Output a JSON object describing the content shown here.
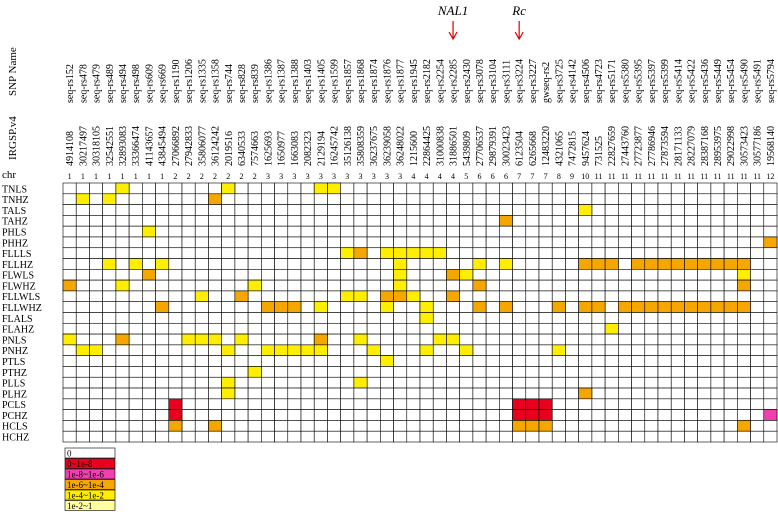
{
  "header": {
    "snp_label": "SNP Name",
    "pos_label": "IRGSP.v4",
    "chr_label": "chr"
  },
  "annotations": [
    {
      "label": "NAL1",
      "col": 29
    },
    {
      "label": "Rc",
      "col": 34
    }
  ],
  "columns": [
    {
      "name": "seq-rs152",
      "pos": "4914108",
      "chr": "1"
    },
    {
      "name": "seq-rs478",
      "pos": "30217497",
      "chr": "1"
    },
    {
      "name": "seq-rs479",
      "pos": "30318105",
      "chr": "1"
    },
    {
      "name": "seq-rs489",
      "pos": "32542551",
      "chr": "1"
    },
    {
      "name": "seq-rs494",
      "pos": "32893083",
      "chr": "1"
    },
    {
      "name": "seq-rs498",
      "pos": "33366474",
      "chr": "1"
    },
    {
      "name": "seq-rs609",
      "pos": "41143657",
      "chr": "1"
    },
    {
      "name": "seq-rs669",
      "pos": "43845494",
      "chr": "1"
    },
    {
      "name": "seq-rs1190",
      "pos": "27066892",
      "chr": "2"
    },
    {
      "name": "seq-rs1206",
      "pos": "27942833",
      "chr": "2"
    },
    {
      "name": "seq-rs1335",
      "pos": "35806077",
      "chr": "2"
    },
    {
      "name": "seq-rs1358",
      "pos": "36124242",
      "chr": "2"
    },
    {
      "name": "seq-rs744",
      "pos": "2019516",
      "chr": "2"
    },
    {
      "name": "seq-rs828",
      "pos": "6340533",
      "chr": "2"
    },
    {
      "name": "seq-rs839",
      "pos": "7574663",
      "chr": "2"
    },
    {
      "name": "seq-rs1386",
      "pos": "1625693",
      "chr": "3"
    },
    {
      "name": "seq-rs1387",
      "pos": "1650977",
      "chr": "3"
    },
    {
      "name": "seq-rs1388",
      "pos": "1663083",
      "chr": "3"
    },
    {
      "name": "seq-rs1403",
      "pos": "2082323",
      "chr": "3"
    },
    {
      "name": "seq-rs1405",
      "pos": "2129194",
      "chr": "3"
    },
    {
      "name": "seq-rs1599",
      "pos": "16245742",
      "chr": "3"
    },
    {
      "name": "seq-rs1857",
      "pos": "35126138",
      "chr": "3"
    },
    {
      "name": "seq-rs1868",
      "pos": "35808359",
      "chr": "3"
    },
    {
      "name": "seq-rs1874",
      "pos": "36237675",
      "chr": "3"
    },
    {
      "name": "seq-rs1876",
      "pos": "36239058",
      "chr": "3"
    },
    {
      "name": "seq-rs1877",
      "pos": "36248022",
      "chr": "3"
    },
    {
      "name": "seq-rs1945",
      "pos": "1215600",
      "chr": "4"
    },
    {
      "name": "seq-rs2182",
      "pos": "22864425",
      "chr": "4"
    },
    {
      "name": "seq-rs2254",
      "pos": "31000838",
      "chr": "4"
    },
    {
      "name": "seq-rs2285",
      "pos": "31886501",
      "chr": "4"
    },
    {
      "name": "seq-rs2430",
      "pos": "5439809",
      "chr": "5"
    },
    {
      "name": "seq-rs3078",
      "pos": "27706537",
      "chr": "6"
    },
    {
      "name": "seq-rs3104",
      "pos": "29879391",
      "chr": "6"
    },
    {
      "name": "seq-rs3111",
      "pos": "30023423",
      "chr": "6"
    },
    {
      "name": "seq-rs3224",
      "pos": "6123504",
      "chr": "7"
    },
    {
      "name": "seq-rs3227",
      "pos": "6265668",
      "chr": "7"
    },
    {
      "name": "gwseq-rs2",
      "pos": "12483220",
      "chr": "7"
    },
    {
      "name": "seq-rs3725",
      "pos": "4321065",
      "chr": "8"
    },
    {
      "name": "seq-rs4142",
      "pos": "7472815",
      "chr": "9"
    },
    {
      "name": "seq-rs4506",
      "pos": "9457624",
      "chr": "10"
    },
    {
      "name": "seq-rs4723",
      "pos": "731525",
      "chr": "11"
    },
    {
      "name": "seq-rs5171",
      "pos": "22827659",
      "chr": "11"
    },
    {
      "name": "seq-rs5380",
      "pos": "27443760",
      "chr": "11"
    },
    {
      "name": "seq-rs5395",
      "pos": "27723877",
      "chr": "11"
    },
    {
      "name": "seq-rs5397",
      "pos": "27786946",
      "chr": "11"
    },
    {
      "name": "seq-rs5399",
      "pos": "27873594",
      "chr": "11"
    },
    {
      "name": "seq-rs5414",
      "pos": "28171133",
      "chr": "11"
    },
    {
      "name": "seq-rs5422",
      "pos": "28227079",
      "chr": "11"
    },
    {
      "name": "seq-rs5436",
      "pos": "28387168",
      "chr": "11"
    },
    {
      "name": "seq-rs5449",
      "pos": "28953975",
      "chr": "11"
    },
    {
      "name": "seq-rs5454",
      "pos": "29022998",
      "chr": "11"
    },
    {
      "name": "seq-rs5490",
      "pos": "30573423",
      "chr": "11"
    },
    {
      "name": "seq-rs5491",
      "pos": "30577186",
      "chr": "11"
    },
    {
      "name": "seq-rs5794",
      "pos": "19568140",
      "chr": "12"
    }
  ],
  "rows": [
    {
      "label": "TNLS",
      "cells": [
        [
          4,
          4
        ],
        [
          12,
          4
        ],
        [
          19,
          4
        ],
        [
          20,
          4
        ]
      ]
    },
    {
      "label": "TNHZ",
      "cells": [
        [
          1,
          4
        ],
        [
          3,
          4
        ],
        [
          11,
          3
        ]
      ]
    },
    {
      "label": "TALS",
      "cells": [
        [
          39,
          4
        ]
      ]
    },
    {
      "label": "TAHZ",
      "cells": [
        [
          33,
          3
        ]
      ]
    },
    {
      "label": "PHLS",
      "cells": [
        [
          6,
          4
        ]
      ]
    },
    {
      "label": "PHHZ",
      "cells": [
        [
          53,
          3
        ]
      ]
    },
    {
      "label": "FLLLS",
      "cells": [
        [
          21,
          4
        ],
        [
          22,
          3
        ],
        [
          24,
          4
        ],
        [
          25,
          4
        ],
        [
          26,
          4
        ],
        [
          27,
          4
        ],
        [
          28,
          4
        ]
      ]
    },
    {
      "label": "FLLHZ",
      "cells": [
        [
          3,
          4
        ],
        [
          5,
          4
        ],
        [
          7,
          4
        ],
        [
          25,
          4
        ],
        [
          31,
          4
        ],
        [
          33,
          4
        ],
        [
          39,
          3
        ],
        [
          40,
          3
        ],
        [
          41,
          3
        ],
        [
          43,
          3
        ],
        [
          44,
          3
        ],
        [
          45,
          3
        ],
        [
          46,
          3
        ],
        [
          47,
          3
        ],
        [
          48,
          3
        ],
        [
          49,
          3
        ],
        [
          50,
          3
        ],
        [
          51,
          3
        ]
      ]
    },
    {
      "label": "FLWLS",
      "cells": [
        [
          6,
          3
        ],
        [
          25,
          4
        ],
        [
          29,
          3
        ],
        [
          30,
          4
        ],
        [
          51,
          4
        ]
      ]
    },
    {
      "label": "FLWHZ",
      "cells": [
        [
          0,
          3
        ],
        [
          4,
          4
        ],
        [
          14,
          4
        ],
        [
          25,
          4
        ],
        [
          31,
          3
        ],
        [
          51,
          3
        ]
      ]
    },
    {
      "label": "FLLWLS",
      "cells": [
        [
          10,
          4
        ],
        [
          13,
          3
        ],
        [
          21,
          4
        ],
        [
          22,
          4
        ],
        [
          24,
          3
        ],
        [
          25,
          3
        ],
        [
          26,
          4
        ],
        [
          29,
          3
        ]
      ]
    },
    {
      "label": "FLLWHZ",
      "cells": [
        [
          7,
          3
        ],
        [
          15,
          3
        ],
        [
          16,
          3
        ],
        [
          17,
          3
        ],
        [
          19,
          4
        ],
        [
          24,
          4
        ],
        [
          27,
          4
        ],
        [
          31,
          3
        ],
        [
          33,
          3
        ],
        [
          37,
          3
        ],
        [
          39,
          3
        ],
        [
          40,
          3
        ],
        [
          42,
          3
        ],
        [
          43,
          3
        ],
        [
          44,
          3
        ],
        [
          45,
          3
        ],
        [
          46,
          3
        ],
        [
          47,
          3
        ],
        [
          48,
          3
        ],
        [
          49,
          3
        ],
        [
          50,
          3
        ],
        [
          51,
          3
        ]
      ]
    },
    {
      "label": "FLALS",
      "cells": [
        [
          27,
          4
        ]
      ]
    },
    {
      "label": "FLAHZ",
      "cells": [
        [
          41,
          4
        ]
      ]
    },
    {
      "label": "PNLS",
      "cells": [
        [
          0,
          4
        ],
        [
          4,
          3
        ],
        [
          9,
          4
        ],
        [
          10,
          4
        ],
        [
          11,
          4
        ],
        [
          13,
          4
        ],
        [
          19,
          3
        ],
        [
          22,
          4
        ],
        [
          28,
          4
        ],
        [
          29,
          4
        ]
      ]
    },
    {
      "label": "PNHZ",
      "cells": [
        [
          1,
          4
        ],
        [
          2,
          4
        ],
        [
          12,
          4
        ],
        [
          15,
          4
        ],
        [
          16,
          4
        ],
        [
          17,
          4
        ],
        [
          18,
          4
        ],
        [
          19,
          4
        ],
        [
          23,
          4
        ],
        [
          27,
          4
        ],
        [
          30,
          4
        ],
        [
          37,
          4
        ]
      ]
    },
    {
      "label": "PTLS",
      "cells": [
        [
          24,
          4
        ]
      ]
    },
    {
      "label": "PTHZ",
      "cells": [
        [
          14,
          4
        ]
      ]
    },
    {
      "label": "PLLS",
      "cells": [
        [
          12,
          4
        ],
        [
          22,
          4
        ]
      ]
    },
    {
      "label": "PLHZ",
      "cells": [
        [
          12,
          4
        ],
        [
          39,
          3
        ]
      ]
    },
    {
      "label": "PCLS",
      "cells": [
        [
          8,
          1
        ],
        [
          34,
          1
        ],
        [
          35,
          1
        ],
        [
          36,
          1
        ]
      ]
    },
    {
      "label": "PCHZ",
      "cells": [
        [
          8,
          1
        ],
        [
          34,
          1
        ],
        [
          35,
          1
        ],
        [
          36,
          1
        ],
        [
          53,
          2
        ]
      ]
    },
    {
      "label": "HCLS",
      "cells": [
        [
          8,
          3
        ],
        [
          11,
          3
        ],
        [
          34,
          3
        ],
        [
          35,
          3
        ],
        [
          36,
          3
        ],
        [
          51,
          3
        ]
      ]
    },
    {
      "label": "HCHZ",
      "cells": []
    }
  ],
  "legend": [
    {
      "label": "0",
      "color": "#ffffff"
    },
    {
      "label": "0~1e-8",
      "color": "#e8001e"
    },
    {
      "label": "1e-8~1e-6",
      "color": "#f040b0"
    },
    {
      "label": "1e-6~1e-4",
      "color": "#f5a700"
    },
    {
      "label": "1e-4~1e-2",
      "color": "#ffee00"
    },
    {
      "label": "1e-2~1",
      "color": "#ffffa0"
    }
  ]
}
